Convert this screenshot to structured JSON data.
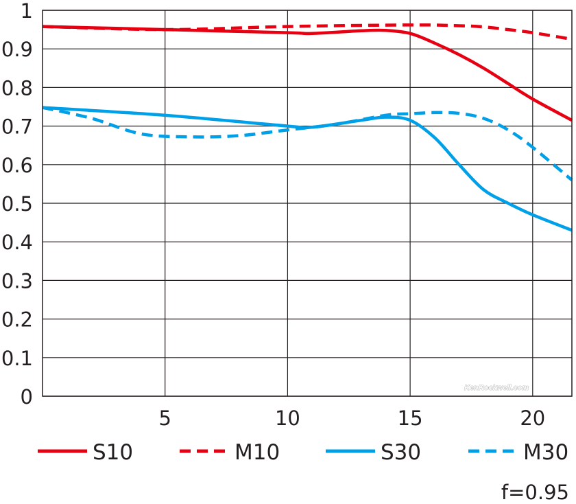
{
  "chart_data": {
    "type": "line",
    "title": "",
    "xlabel": "",
    "ylabel": "",
    "xlim": [
      0,
      21.6
    ],
    "ylim": [
      0,
      1
    ],
    "grid": true,
    "legend_placement": "bottom",
    "x_ticks": [
      "5",
      "10",
      "15",
      "20"
    ],
    "x_tick_values": [
      5,
      10,
      15,
      20
    ],
    "y_ticks": [
      "0",
      "0.1",
      "0.2",
      "0.3",
      "0.4",
      "0.5",
      "0.6",
      "0.7",
      "0.8",
      "0.9",
      "1"
    ],
    "y_tick_values": [
      0,
      0.1,
      0.2,
      0.3,
      0.4,
      0.5,
      0.6,
      0.7,
      0.8,
      0.9,
      1
    ],
    "series": [
      {
        "name": "S10",
        "color": "#e60012",
        "dashed": false,
        "x": [
          0,
          5,
          10,
          11,
          13,
          14,
          15,
          16,
          17,
          18,
          19,
          20,
          21.6
        ],
        "y": [
          0.958,
          0.95,
          0.942,
          0.94,
          0.947,
          0.948,
          0.94,
          0.915,
          0.885,
          0.85,
          0.81,
          0.77,
          0.715
        ]
      },
      {
        "name": "M10",
        "color": "#e60012",
        "dashed": true,
        "x": [
          0,
          5,
          10,
          15,
          17,
          18,
          19,
          20,
          21.6
        ],
        "y": [
          0.958,
          0.95,
          0.958,
          0.962,
          0.96,
          0.957,
          0.95,
          0.942,
          0.925
        ]
      },
      {
        "name": "S30",
        "color": "#00a0e9",
        "dashed": false,
        "x": [
          0,
          5,
          10,
          11,
          13,
          14,
          15,
          16,
          17,
          18,
          19,
          20,
          21.6
        ],
        "y": [
          0.748,
          0.728,
          0.7,
          0.697,
          0.715,
          0.723,
          0.715,
          0.67,
          0.6,
          0.535,
          0.5,
          0.47,
          0.43
        ]
      },
      {
        "name": "M30",
        "color": "#00a0e9",
        "dashed": true,
        "x": [
          0,
          2,
          4,
          6,
          8,
          10,
          12,
          14,
          15,
          16,
          17,
          18,
          19,
          20,
          21.6
        ],
        "y": [
          0.748,
          0.72,
          0.68,
          0.672,
          0.675,
          0.69,
          0.705,
          0.728,
          0.732,
          0.735,
          0.733,
          0.72,
          0.69,
          0.645,
          0.56
        ]
      }
    ],
    "annotation": "f=0.95",
    "watermark": "KenRockwell.com"
  }
}
